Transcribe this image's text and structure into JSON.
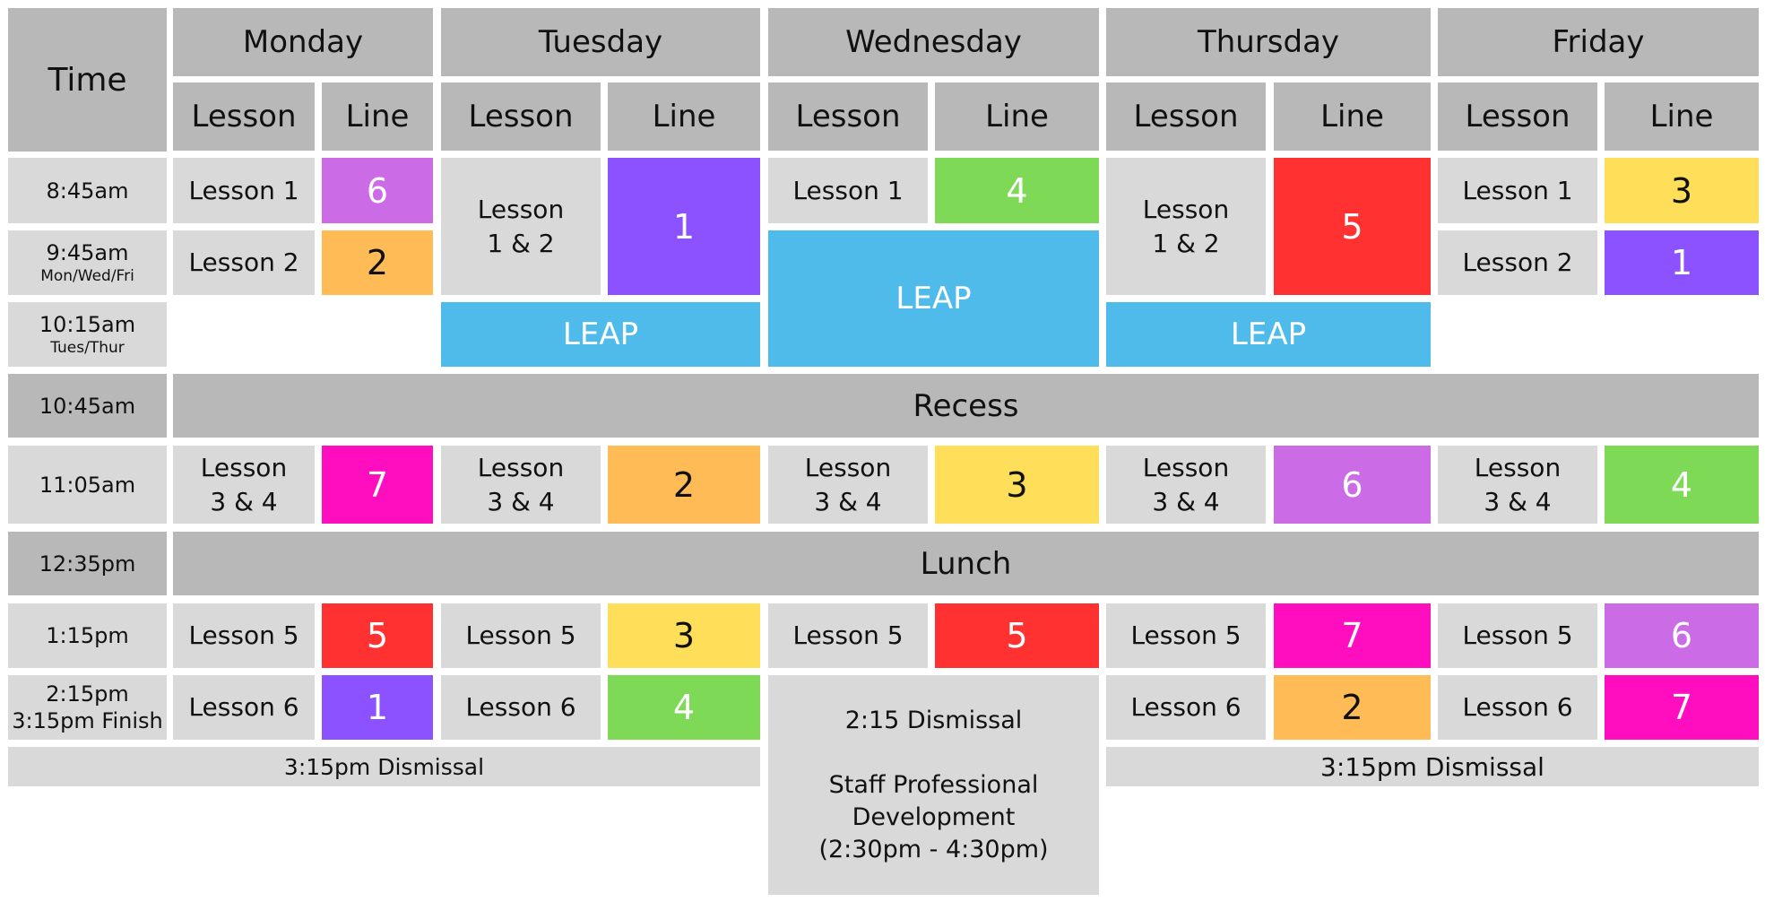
{
  "colors": {
    "header_gray": "#b8b8b8",
    "cell_gray": "#d9d9d9",
    "leap_blue": "#4fbbeb",
    "line_1": "#8c52ff",
    "line_2": "#ffbb55",
    "line_3": "#ffde59",
    "line_4": "#7ed957",
    "line_5": "#ff3131",
    "line_6": "#cb6ce6",
    "line_7": "#ff0ebf"
  },
  "header": {
    "time": "Time",
    "days": [
      "Monday",
      "Tuesday",
      "Wednesday",
      "Thursday",
      "Friday"
    ],
    "lesson_label": "Lesson",
    "line_label": "Line"
  },
  "times": {
    "t1": "8:45am",
    "t2": "9:45am",
    "t2_note": "Mon/Wed/Fri",
    "t3": "10:15am",
    "t3_note": "Tues/Thur",
    "t4": "10:45am",
    "t5": "11:05am",
    "t6": "12:35pm",
    "t7": "1:15pm",
    "t8": "2:15pm",
    "t8_note": "3:15pm Finish"
  },
  "lessons": {
    "lesson1": "Lesson 1",
    "lesson2": "Lesson 2",
    "lesson12_a": "Lesson",
    "lesson12_b": "1 & 2",
    "lesson34_a": "Lesson",
    "lesson34_b": "3 & 4",
    "lesson5": "Lesson 5",
    "lesson6": "Lesson 6"
  },
  "lines": {
    "mon_1": "6",
    "mon_2": "2",
    "mon_34": "7",
    "mon_5": "5",
    "mon_6": "1",
    "tue_12": "1",
    "tue_34": "2",
    "tue_5": "3",
    "tue_6": "4",
    "wed_1": "4",
    "wed_34": "3",
    "wed_5": "5",
    "thu_12": "5",
    "thu_34": "6",
    "thu_5": "7",
    "thu_6": "2",
    "fri_1": "3",
    "fri_2": "1",
    "fri_34": "4",
    "fri_5": "6",
    "fri_6": "7"
  },
  "leap": "LEAP",
  "recess": "Recess",
  "lunch": "Lunch",
  "dismissal_315": "3:15pm Dismissal",
  "wednesday_end": {
    "dismissal": "2:15 Dismissal",
    "staff_1": "Staff Professional",
    "staff_2": "Development",
    "staff_3": "(2:30pm - 4:30pm)"
  }
}
